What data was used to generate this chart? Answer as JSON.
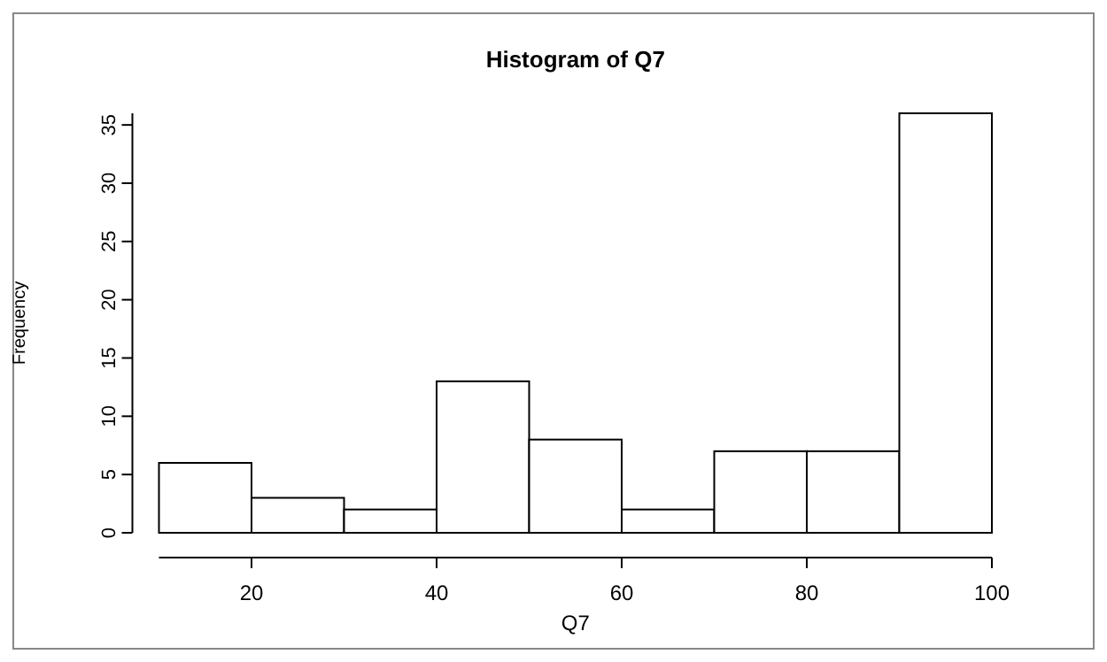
{
  "chart_data": {
    "type": "histogram",
    "title": "Histogram of Q7",
    "xlabel": "Q7",
    "ylabel": "Frequency",
    "bins": [
      10,
      20,
      30,
      40,
      50,
      60,
      70,
      80,
      90,
      100
    ],
    "values": [
      6,
      3,
      2,
      13,
      8,
      2,
      7,
      7,
      36
    ],
    "color": "#ffffff",
    "xlim": [
      10,
      100
    ],
    "xticks": [
      20,
      40,
      60,
      80,
      100
    ],
    "ylim": [
      0,
      36
    ],
    "yticks": [
      0,
      5,
      10,
      15,
      20,
      25,
      30,
      35
    ],
    "grid": false
  }
}
